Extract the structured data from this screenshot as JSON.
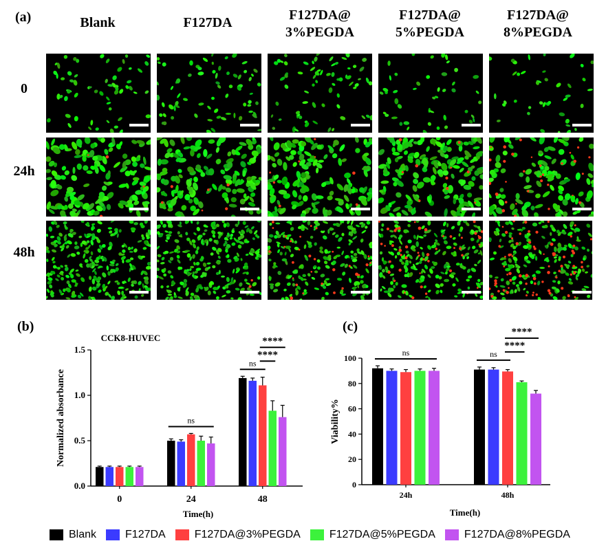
{
  "figure": {
    "panel_a_label": "(a)",
    "panel_b_label": "(b)",
    "panel_c_label": "(c)",
    "columns": [
      "Blank",
      "F127DA",
      "F127DA@\n3%PEGDA",
      "F127DA@\n5%PEGDA",
      "F127DA@\n8%PEGDA"
    ],
    "rows": [
      "0",
      "24h",
      "48h"
    ]
  },
  "legend": [
    {
      "label": "Blank",
      "color": "#000000"
    },
    {
      "label": "F127DA",
      "color": "#3b3bff"
    },
    {
      "label": "F127DA@3%PEGDA",
      "color": "#ff4040"
    },
    {
      "label": "F127DA@5%PEGDA",
      "color": "#3cf23c"
    },
    {
      "label": "F127DA@8%PEGDA",
      "color": "#c254f0"
    }
  ],
  "chart_data": [
    {
      "type": "bar",
      "title": "CCK8-HUVEC",
      "xlabel": "Time(h)",
      "ylabel": "Normalized absorbance",
      "categories": [
        "0",
        "24",
        "48"
      ],
      "ylim": [
        0,
        1.5
      ],
      "yticks": [
        "0.0",
        "0.5",
        "1.0",
        "1.5"
      ],
      "series": [
        {
          "name": "Blank",
          "values": [
            0.21,
            0.5,
            1.19
          ],
          "errors": [
            0.01,
            0.02,
            0.02
          ]
        },
        {
          "name": "F127DA",
          "values": [
            0.21,
            0.49,
            1.16
          ],
          "errors": [
            0.01,
            0.02,
            0.03
          ]
        },
        {
          "name": "F127DA@3%PEGDA",
          "values": [
            0.21,
            0.57,
            1.11
          ],
          "errors": [
            0.01,
            0.01,
            0.09
          ]
        },
        {
          "name": "F127DA@5%PEGDA",
          "values": [
            0.21,
            0.5,
            0.83
          ],
          "errors": [
            0.01,
            0.05,
            0.11
          ]
        },
        {
          "name": "F127DA@8%PEGDA",
          "values": [
            0.21,
            0.47,
            0.76
          ],
          "errors": [
            0.01,
            0.07,
            0.13
          ]
        }
      ],
      "annotations": [
        {
          "text": "ns",
          "group": 1,
          "from_series": 0,
          "to_series": 4
        },
        {
          "text": "ns",
          "group": 2,
          "from_series": 0,
          "to_series": 2
        },
        {
          "text": "****",
          "group": 2,
          "from_series": 2,
          "to_series": 3
        },
        {
          "text": "****",
          "group": 2,
          "from_series": 2,
          "to_series": 4
        }
      ]
    },
    {
      "type": "bar",
      "title": "",
      "xlabel": "Time(h)",
      "ylabel": "Viability%",
      "categories": [
        "24h",
        "48h"
      ],
      "ylim": [
        0,
        100
      ],
      "yticks": [
        "0",
        "20",
        "40",
        "60",
        "80",
        "100"
      ],
      "series": [
        {
          "name": "Blank",
          "values": [
            92,
            91
          ],
          "errors": [
            2,
            2
          ]
        },
        {
          "name": "F127DA",
          "values": [
            90,
            91
          ],
          "errors": [
            1.5,
            1.5
          ]
        },
        {
          "name": "F127DA@3%PEGDA",
          "values": [
            89,
            89.5
          ],
          "errors": [
            2,
            1.5
          ]
        },
        {
          "name": "F127DA@5%PEGDA",
          "values": [
            90,
            81
          ],
          "errors": [
            1.5,
            1
          ]
        },
        {
          "name": "F127DA@8%PEGDA",
          "values": [
            90,
            72
          ],
          "errors": [
            2,
            2.5
          ]
        }
      ],
      "annotations": [
        {
          "text": "ns",
          "group": 0,
          "from_series": 0,
          "to_series": 4
        },
        {
          "text": "ns",
          "group": 1,
          "from_series": 0,
          "to_series": 2
        },
        {
          "text": "****",
          "group": 1,
          "from_series": 2,
          "to_series": 3
        },
        {
          "text": "****",
          "group": 1,
          "from_series": 2,
          "to_series": 4
        }
      ]
    }
  ]
}
